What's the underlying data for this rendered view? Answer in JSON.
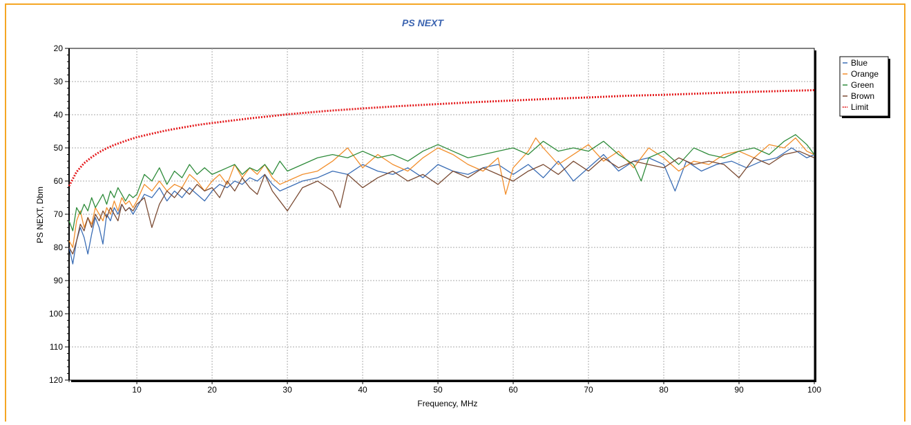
{
  "chart_data": {
    "type": "line",
    "title": "PS NEXT",
    "xlabel": "Frequency, MHz",
    "ylabel": "PS NEXT, Dbm",
    "xlim": [
      1,
      100
    ],
    "ylim": [
      20,
      120
    ],
    "y_inverted": true,
    "x_ticks": [
      10,
      20,
      30,
      40,
      50,
      60,
      70,
      80,
      90,
      100
    ],
    "y_ticks": [
      20,
      30,
      40,
      50,
      60,
      70,
      80,
      90,
      100,
      110,
      120
    ],
    "grid": true,
    "legend_position": "top-right",
    "series": [
      {
        "name": "Blue",
        "color": "#3a6db5",
        "x": [
          1,
          1.5,
          2,
          2.5,
          3,
          3.5,
          4,
          4.5,
          5,
          5.5,
          6,
          6.5,
          7,
          7.5,
          8,
          8.5,
          9,
          9.5,
          10,
          11,
          12,
          13,
          14,
          15,
          16,
          17,
          18,
          19,
          20,
          21,
          22,
          23,
          24,
          25,
          26,
          27,
          28,
          29,
          30,
          32,
          34,
          36,
          38,
          40,
          42,
          44,
          46,
          48,
          50,
          52,
          54,
          56,
          58,
          60,
          62,
          64,
          66,
          68,
          70,
          72,
          74,
          76,
          78,
          80,
          81.5,
          83,
          85,
          87,
          89,
          91,
          93,
          95,
          97,
          99,
          100
        ],
        "values": [
          80,
          85,
          78,
          74,
          77,
          82,
          76,
          71,
          74,
          79,
          70,
          72,
          68,
          70,
          67,
          69,
          68,
          70,
          68,
          64,
          65,
          62,
          66,
          63,
          65,
          62,
          64,
          66,
          63,
          61,
          62,
          60,
          61,
          59,
          60,
          58,
          61,
          63,
          62,
          60,
          59,
          57,
          58,
          55,
          57,
          58,
          56,
          59,
          55,
          57,
          58,
          56,
          55,
          58,
          55,
          59,
          54,
          60,
          56,
          52,
          57,
          54,
          53,
          55,
          63,
          54,
          57,
          55,
          54,
          56,
          54,
          53,
          50,
          53,
          52
        ]
      },
      {
        "name": "Orange",
        "color": "#f28e2b",
        "x": [
          1,
          1.5,
          2,
          2.5,
          3,
          3.5,
          4,
          4.5,
          5,
          5.5,
          6,
          6.5,
          7,
          7.5,
          8,
          8.5,
          9,
          9.5,
          10,
          11,
          12,
          13,
          14,
          15,
          16,
          17,
          18,
          19,
          20,
          21,
          22,
          23,
          24,
          25,
          26,
          27,
          28,
          29,
          30,
          32,
          34,
          36,
          38,
          40,
          42,
          44,
          46,
          48,
          50,
          52,
          54,
          56,
          58,
          59,
          60,
          62,
          63,
          64,
          66,
          68,
          70,
          72,
          74,
          76,
          78,
          80,
          82,
          84,
          86,
          88,
          90,
          92,
          94,
          96,
          97.5,
          99,
          100
        ],
        "values": [
          78,
          80,
          72,
          69,
          74,
          71,
          73,
          68,
          70,
          72,
          68,
          70,
          66,
          69,
          65,
          67,
          66,
          68,
          66,
          61,
          63,
          60,
          63,
          61,
          62,
          58,
          60,
          63,
          60,
          58,
          61,
          55,
          59,
          56,
          58,
          55,
          59,
          61,
          60,
          58,
          57,
          54,
          50,
          56,
          52,
          55,
          57,
          53,
          50,
          52,
          55,
          57,
          53,
          64,
          56,
          51,
          47,
          50,
          55,
          52,
          49,
          54,
          51,
          56,
          50,
          53,
          57,
          54,
          55,
          52,
          51,
          53,
          49,
          50,
          47,
          51,
          52
        ]
      },
      {
        "name": "Green",
        "color": "#2e8b3a",
        "x": [
          1,
          1.5,
          2,
          2.5,
          3,
          3.5,
          4,
          4.5,
          5,
          5.5,
          6,
          6.5,
          7,
          7.5,
          8,
          8.5,
          9,
          9.5,
          10,
          11,
          12,
          13,
          14,
          15,
          16,
          17,
          18,
          19,
          20,
          21,
          22,
          23,
          24,
          25,
          26,
          27,
          28,
          29,
          30,
          32,
          34,
          36,
          38,
          40,
          42,
          44,
          46,
          48,
          50,
          52,
          54,
          56,
          58,
          60,
          62,
          64,
          66,
          68,
          70,
          72,
          74,
          76,
          77,
          78,
          80,
          82,
          84,
          86,
          88,
          90,
          92,
          94,
          96,
          97.5,
          99,
          100
        ],
        "values": [
          72,
          75,
          68,
          70,
          67,
          69,
          65,
          68,
          66,
          64,
          67,
          63,
          65,
          62,
          64,
          66,
          64,
          65,
          64,
          58,
          60,
          56,
          61,
          57,
          59,
          55,
          58,
          56,
          58,
          57,
          56,
          55,
          58,
          56,
          57,
          55,
          58,
          54,
          57,
          55,
          53,
          52,
          53,
          51,
          53,
          52,
          54,
          51,
          49,
          51,
          53,
          52,
          51,
          50,
          52,
          48,
          51,
          50,
          51,
          48,
          52,
          55,
          60,
          53,
          51,
          55,
          50,
          52,
          53,
          51,
          50,
          52,
          48,
          46,
          49,
          52
        ]
      },
      {
        "name": "Brown",
        "color": "#7a4a32",
        "x": [
          1,
          1.5,
          2,
          2.5,
          3,
          3.5,
          4,
          4.5,
          5,
          5.5,
          6,
          6.5,
          7,
          7.5,
          8,
          8.5,
          9,
          9.5,
          10,
          11,
          12,
          13,
          14,
          15,
          16,
          17,
          18,
          19,
          20,
          21,
          22,
          23,
          24,
          25,
          26,
          27,
          28,
          29,
          30,
          32,
          34,
          36,
          37,
          38,
          40,
          42,
          44,
          46,
          48,
          50,
          52,
          54,
          56,
          58,
          60,
          62,
          64,
          66,
          68,
          70,
          72,
          74,
          76,
          78,
          80,
          82,
          84,
          86,
          88,
          90,
          92,
          94,
          96,
          98,
          100
        ],
        "values": [
          80,
          82,
          78,
          73,
          75,
          71,
          74,
          70,
          72,
          69,
          71,
          68,
          70,
          72,
          67,
          69,
          68,
          69,
          67,
          65,
          74,
          67,
          63,
          65,
          62,
          64,
          61,
          63,
          62,
          65,
          60,
          63,
          59,
          62,
          64,
          58,
          63,
          66,
          69,
          62,
          60,
          63,
          68,
          58,
          62,
          59,
          57,
          60,
          58,
          61,
          57,
          59,
          56,
          58,
          60,
          57,
          55,
          58,
          54,
          57,
          53,
          56,
          54,
          55,
          56,
          53,
          55,
          54,
          55,
          59,
          53,
          55,
          52,
          51,
          53
        ]
      },
      {
        "name": "Limit",
        "color": "#e41a1c",
        "dotted": true,
        "x": [
          1,
          2,
          3,
          4,
          5,
          6,
          7,
          8,
          9,
          10,
          12,
          14,
          16,
          18,
          20,
          25,
          30,
          35,
          40,
          45,
          50,
          55,
          60,
          65,
          70,
          75,
          80,
          85,
          90,
          95,
          100
        ],
        "values": [
          61.5,
          57.2,
          54.6,
          52.8,
          51.3,
          50.1,
          49.1,
          48.3,
          47.5,
          46.8,
          45.7,
          44.7,
          43.9,
          43.1,
          42.5,
          41.1,
          39.9,
          38.9,
          38.1,
          37.4,
          36.8,
          36.2,
          35.7,
          35.2,
          34.8,
          34.3,
          34.0,
          33.6,
          33.2,
          32.9,
          32.6
        ]
      }
    ]
  }
}
